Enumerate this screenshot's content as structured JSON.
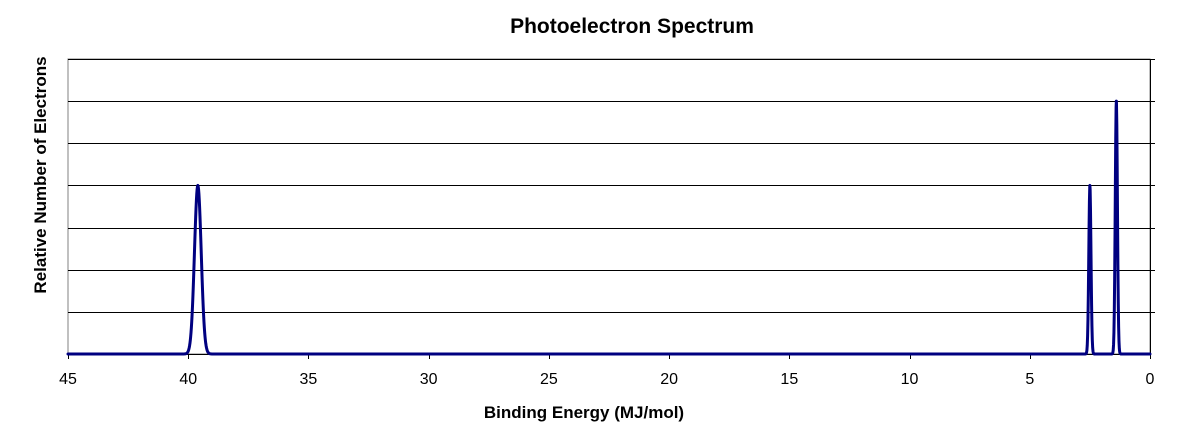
{
  "chart_data": {
    "type": "line",
    "title": "Photoelectron Spectrum",
    "xlabel": "Binding Energy (MJ/mol)",
    "ylabel": "Relative Number of Electrons",
    "x_reversed": true,
    "xlim": [
      45,
      0
    ],
    "ylim": [
      0,
      7
    ],
    "x_ticks": [
      45,
      40,
      35,
      30,
      25,
      20,
      15,
      10,
      5,
      0
    ],
    "y_gridline_values": [
      1,
      2,
      3,
      4,
      5,
      6,
      7
    ],
    "y_tick_labels_shown": false,
    "grid": true,
    "legend": "none",
    "series": [
      {
        "color": "#000080",
        "peaks": [
          {
            "x": 39.6,
            "y": 4
          },
          {
            "x": 2.5,
            "y": 4
          },
          {
            "x": 1.4,
            "y": 6
          }
        ]
      }
    ]
  }
}
